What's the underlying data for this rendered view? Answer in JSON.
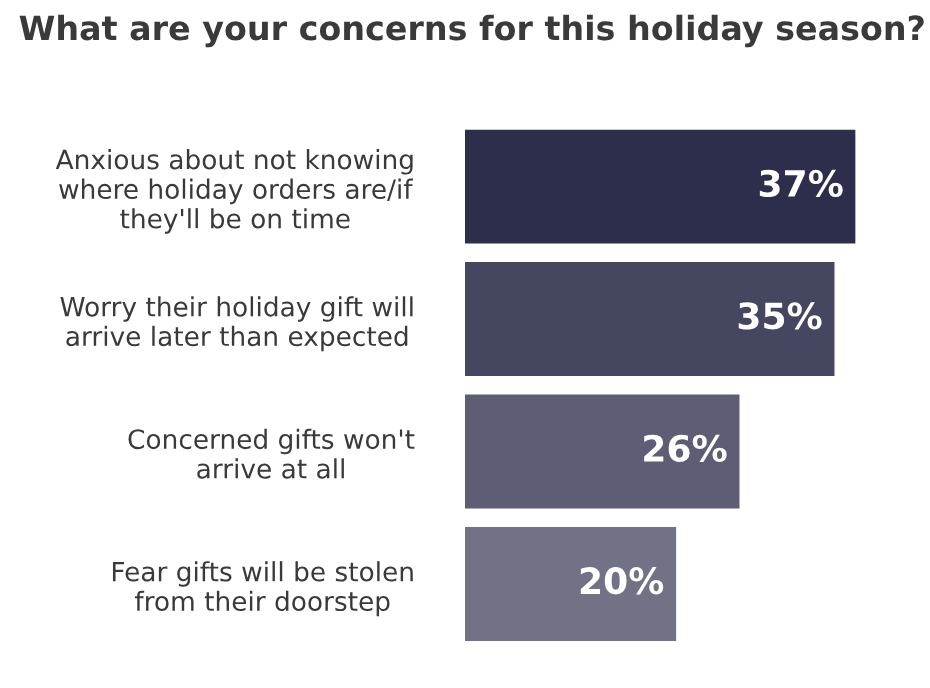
{
  "chart_data": {
    "type": "bar",
    "orientation": "horizontal",
    "title": "What are your concerns for this holiday season?",
    "categories": [
      "Anxious about not knowing\nwhere holiday orders are/if\nthey'll be on time",
      "Worry their holiday gift will\narrive later than expected",
      "Concerned gifts won't\narrive at all",
      "Fear gifts will be stolen\nfrom their doorstep"
    ],
    "values": [
      37,
      35,
      26,
      20
    ],
    "colors": [
      "#2d2e4c",
      "#45465f",
      "#5d5e75",
      "#727287"
    ],
    "value_labels": [
      "37%",
      "35%",
      "26%",
      "20%"
    ],
    "grid": false,
    "legend": false
  }
}
